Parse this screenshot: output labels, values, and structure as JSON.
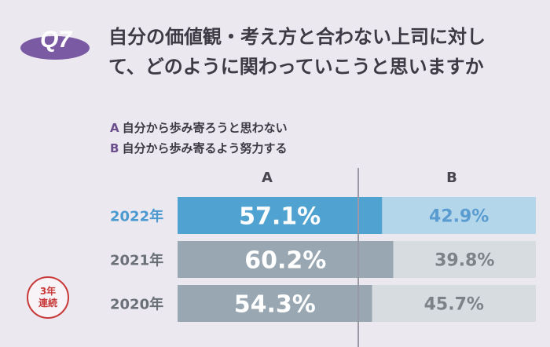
{
  "badge": {
    "label": "Q7"
  },
  "question": {
    "line1": "自分の価値観・考え方と合わない上司に対し",
    "line2": "て、どのように関わっていこうと思いますか"
  },
  "legend": [
    {
      "key": "A",
      "text": "自分から歩み寄ろうと思わない"
    },
    {
      "key": "B",
      "text": "自分から歩み寄るよう努力する"
    }
  ],
  "streak_badge": {
    "line1": "3年",
    "line2": "連続"
  },
  "colors": {
    "a_highlight": "#50a2d0",
    "b_highlight": "#b4d6ea",
    "a_default": "#99a7b3",
    "b_default": "#d7dce0",
    "label_highlight": "#4a9ad0",
    "label_default": "#6a7078",
    "value_b_highlight": "#5a9cd0",
    "value_b_default": "#7b8288",
    "badge_fill": "#7a5aa3"
  },
  "chart_data": {
    "type": "bar",
    "orientation": "horizontal",
    "stacked": true,
    "percent_stacked": true,
    "categories": [
      "2022年",
      "2021年",
      "2020年"
    ],
    "series": [
      {
        "name": "A",
        "values": [
          57.1,
          60.2,
          54.3
        ]
      },
      {
        "name": "B",
        "values": [
          42.9,
          39.8,
          45.7
        ]
      }
    ],
    "value_labels": [
      [
        "57.1%",
        "60.2%",
        "54.3%"
      ],
      [
        "42.9%",
        "39.8%",
        "45.7%"
      ]
    ],
    "highlight_category": "2022年",
    "ylim": [
      0,
      100
    ]
  }
}
